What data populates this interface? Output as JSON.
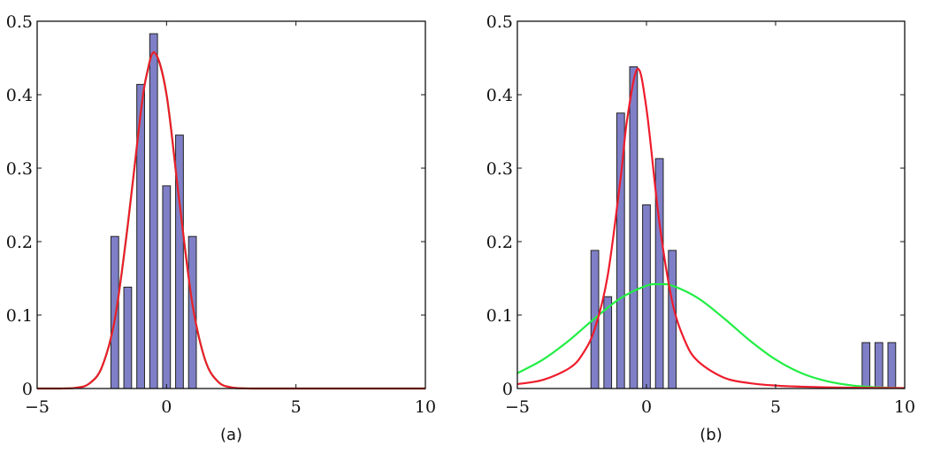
{
  "chart_data": [
    {
      "type": "bar",
      "caption": "(a)",
      "xlim": [
        -5,
        10
      ],
      "ylim": [
        0,
        0.5
      ],
      "xticks": [
        "−5",
        "0",
        "5",
        "10"
      ],
      "xtick_values": [
        -5,
        0,
        5,
        10
      ],
      "yticks": [
        "0",
        "0.1",
        "0.2",
        "0.3",
        "0.4",
        "0.5"
      ],
      "ytick_values": [
        0,
        0.1,
        0.2,
        0.3,
        0.4,
        0.5
      ],
      "grid": false,
      "bar_color": "#7f7fc8",
      "bars": {
        "x": [
          -2,
          -1.5,
          -1,
          -0.5,
          0,
          0.5,
          1
        ],
        "values": [
          0.207,
          0.138,
          0.414,
          0.483,
          0.276,
          0.345,
          0.207
        ]
      },
      "curves": [
        {
          "color": "#22dd44",
          "points": [
            [
              -5,
              0
            ],
            [
              -4.5,
              0
            ],
            [
              -4,
              0.0001
            ],
            [
              -3.5,
              0.001
            ],
            [
              -3,
              0.0064
            ],
            [
              -2.5,
              0.029
            ],
            [
              -2,
              0.094
            ],
            [
              -1.5,
              0.222
            ],
            [
              -1,
              0.375
            ],
            [
              -0.75,
              0.43
            ],
            [
              -0.45,
              0.457
            ],
            [
              0,
              0.4
            ],
            [
              0.5,
              0.253
            ],
            [
              1,
              0.115
            ],
            [
              1.5,
              0.038
            ],
            [
              2,
              0.0089
            ],
            [
              2.5,
              0.0015
            ],
            [
              3,
              0.0002
            ],
            [
              3.5,
              0
            ],
            [
              5,
              0
            ],
            [
              10,
              0
            ]
          ]
        },
        {
          "color": "#ee1c2c",
          "points": [
            [
              -5,
              0
            ],
            [
              -4.5,
              0
            ],
            [
              -4,
              0.0001
            ],
            [
              -3.5,
              0.001
            ],
            [
              -3,
              0.0064
            ],
            [
              -2.5,
              0.029
            ],
            [
              -2,
              0.094
            ],
            [
              -1.5,
              0.222
            ],
            [
              -1,
              0.375
            ],
            [
              -0.75,
              0.43
            ],
            [
              -0.45,
              0.457
            ],
            [
              0,
              0.4
            ],
            [
              0.5,
              0.253
            ],
            [
              1,
              0.115
            ],
            [
              1.5,
              0.038
            ],
            [
              2,
              0.0089
            ],
            [
              2.5,
              0.0015
            ],
            [
              3,
              0.0002
            ],
            [
              3.5,
              0
            ],
            [
              5,
              0
            ],
            [
              10,
              0
            ]
          ]
        }
      ]
    },
    {
      "type": "bar",
      "caption": "(b)",
      "xlim": [
        -5,
        10
      ],
      "ylim": [
        0,
        0.5
      ],
      "xticks": [
        "−5",
        "0",
        "5",
        "10"
      ],
      "xtick_values": [
        -5,
        0,
        5,
        10
      ],
      "yticks": [
        "0",
        "0.1",
        "0.2",
        "0.3",
        "0.4",
        "0.5"
      ],
      "ytick_values": [
        0,
        0.1,
        0.2,
        0.3,
        0.4,
        0.5
      ],
      "grid": false,
      "bar_color": "#7f7fc8",
      "bars": {
        "x": [
          -2,
          -1.5,
          -1,
          -0.5,
          0,
          0.5,
          1,
          8.5,
          9,
          9.5
        ],
        "values": [
          0.188,
          0.125,
          0.375,
          0.438,
          0.25,
          0.313,
          0.188,
          0.0625,
          0.0625,
          0.0625
        ]
      },
      "curves": [
        {
          "color": "#22ee44",
          "points": [
            [
              -5,
              0.0209
            ],
            [
              -4,
              0.0395
            ],
            [
              -3,
              0.0654
            ],
            [
              -2,
              0.0956
            ],
            [
              -1,
              0.123
            ],
            [
              0,
              0.14
            ],
            [
              0.5,
              0.142
            ],
            [
              1,
              0.14
            ],
            [
              2,
              0.123
            ],
            [
              3,
              0.0956
            ],
            [
              4,
              0.0654
            ],
            [
              5,
              0.0395
            ],
            [
              6,
              0.0209
            ],
            [
              7,
              0.0098
            ],
            [
              8,
              0.004
            ],
            [
              9,
              0.0015
            ],
            [
              10,
              0.0005
            ]
          ]
        },
        {
          "color": "#ee1c2c",
          "points": [
            [
              -5,
              0.006
            ],
            [
              -4,
              0.0118
            ],
            [
              -3,
              0.0274
            ],
            [
              -2.5,
              0.0455
            ],
            [
              -2,
              0.0813
            ],
            [
              -1.5,
              0.154
            ],
            [
              -1,
              0.287
            ],
            [
              -0.75,
              0.366
            ],
            [
              -0.35,
              0.435
            ],
            [
              0,
              0.381
            ],
            [
              0.5,
              0.226
            ],
            [
              1,
              0.118
            ],
            [
              1.5,
              0.064
            ],
            [
              2,
              0.037
            ],
            [
              3,
              0.0148
            ],
            [
              4,
              0.0073
            ],
            [
              5,
              0.004
            ],
            [
              6,
              0.0025
            ],
            [
              7,
              0.0016
            ],
            [
              8,
              0.0011
            ],
            [
              10,
              0.0006
            ]
          ]
        }
      ]
    }
  ]
}
